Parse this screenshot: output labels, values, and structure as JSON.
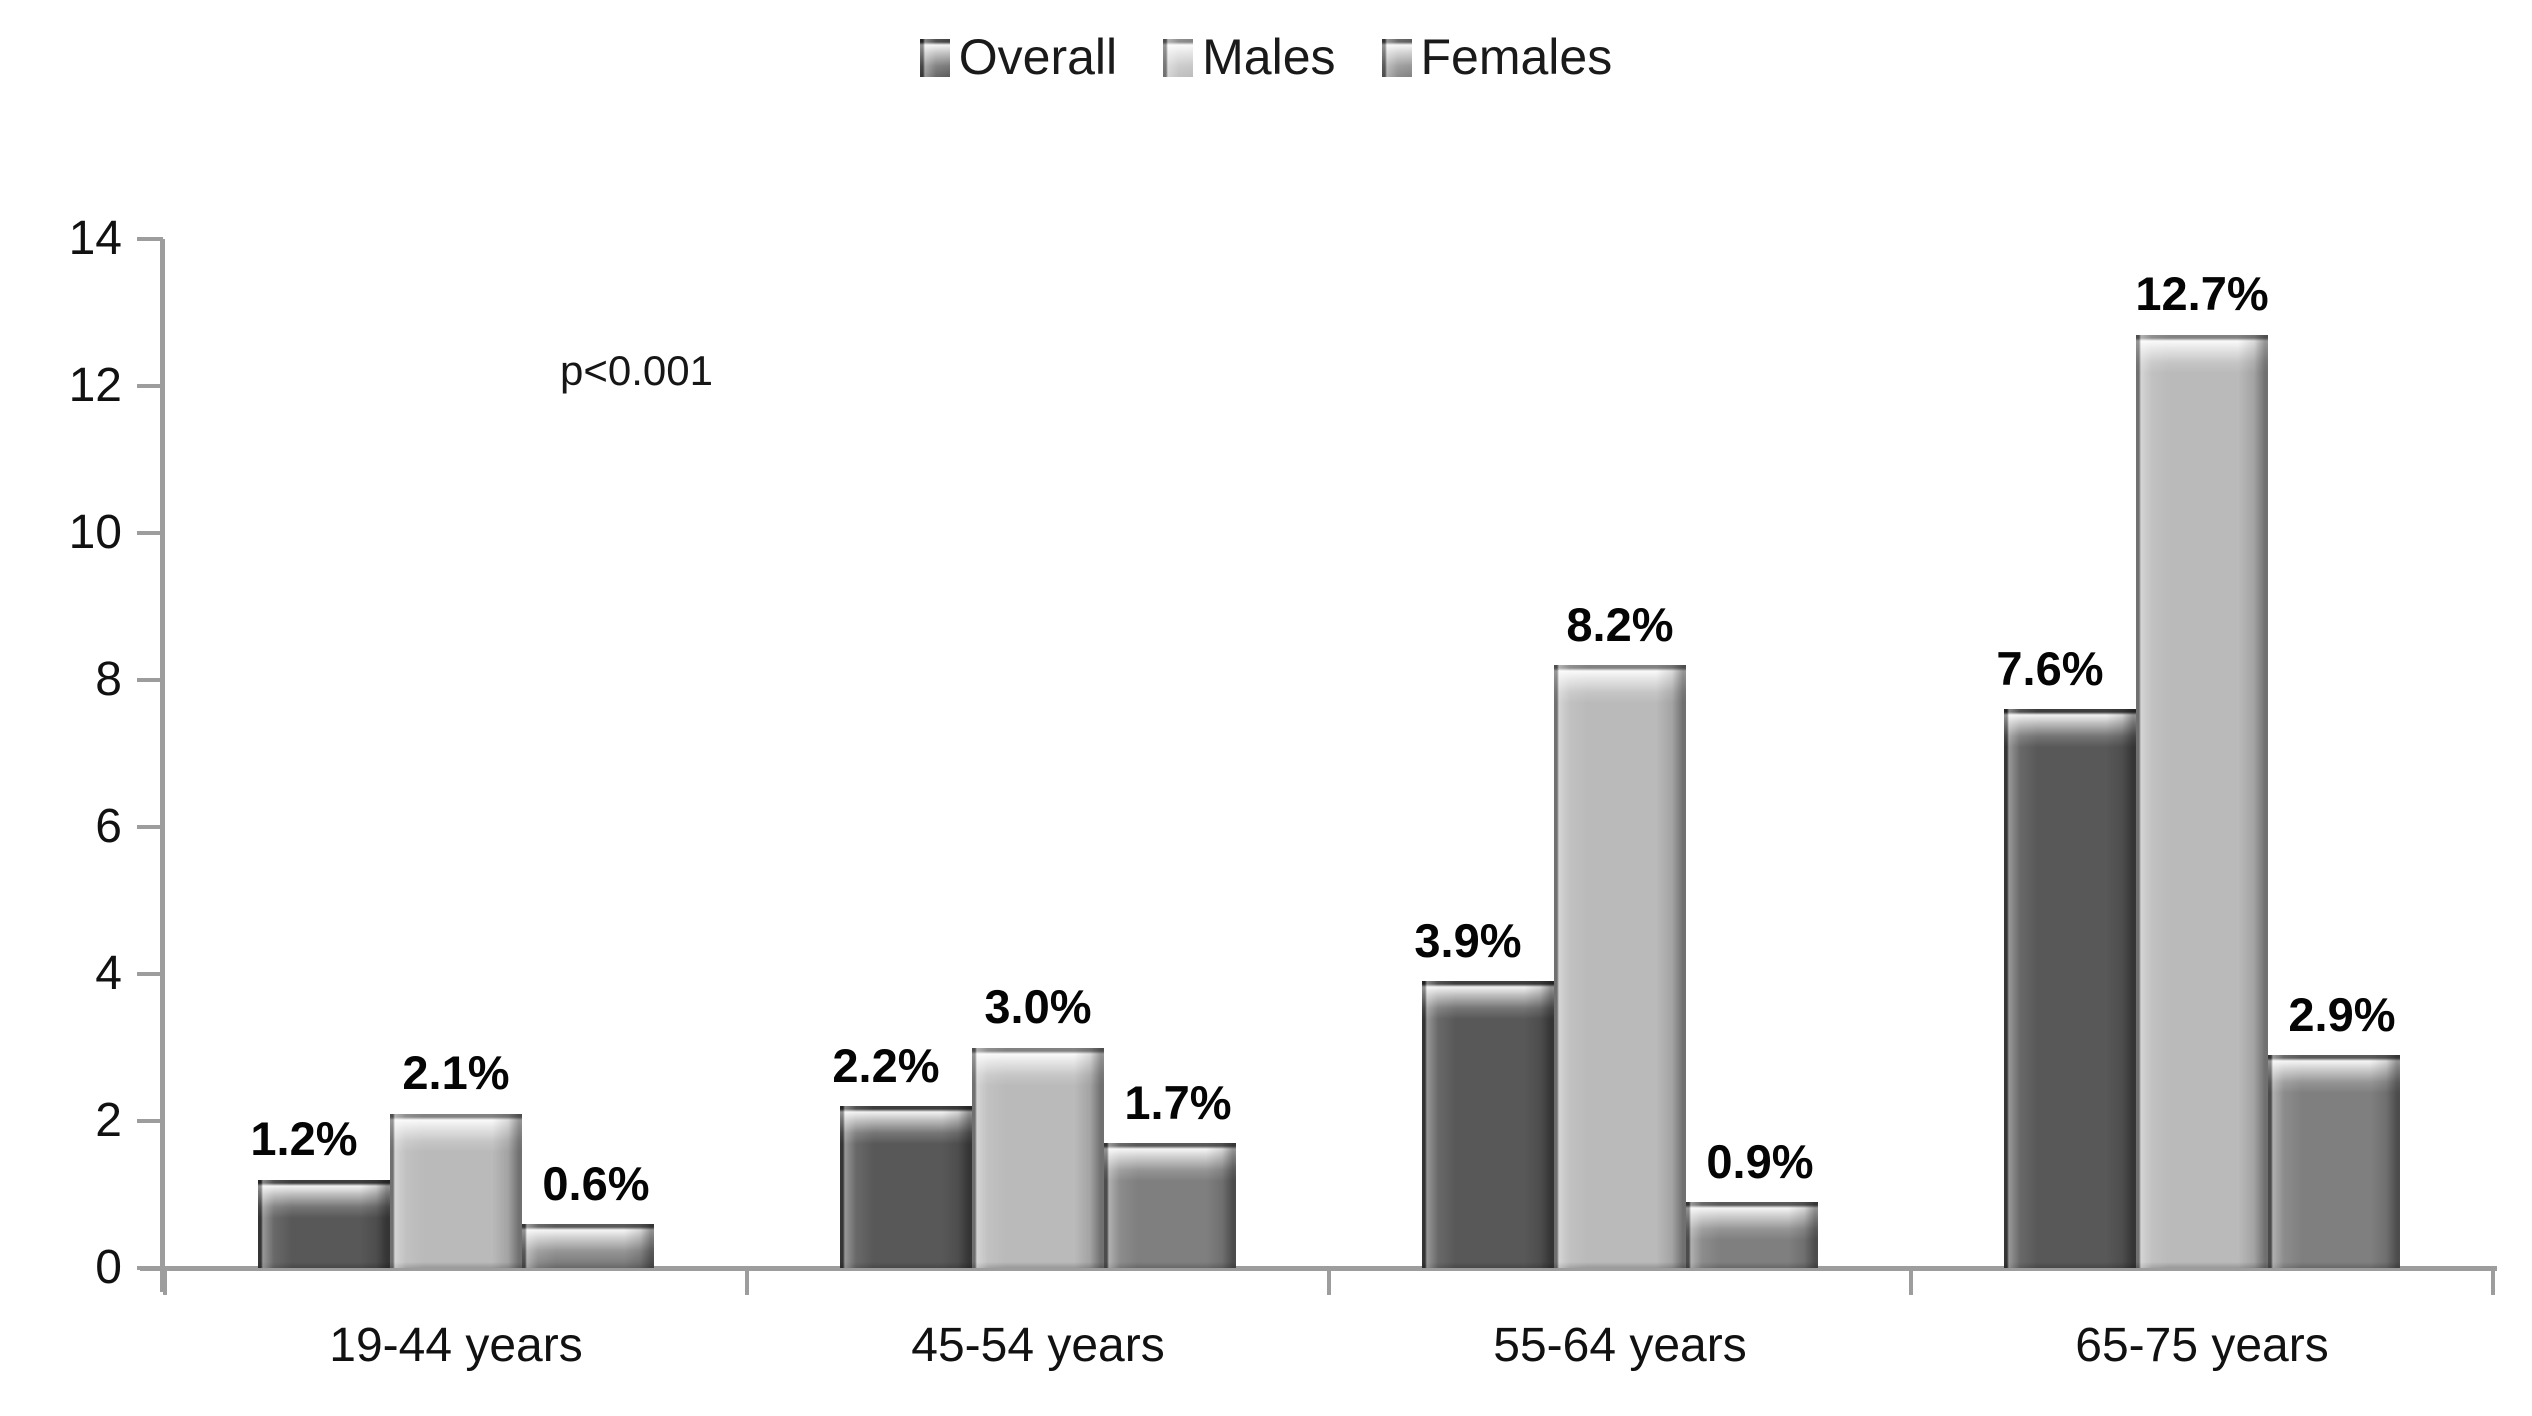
{
  "chart_data": {
    "type": "bar",
    "title": "",
    "categories": [
      "19-44 years",
      "45-54 years",
      "55-64 years",
      "65-75 years"
    ],
    "series": [
      {
        "name": "Overall",
        "color": "#585858",
        "values": [
          1.2,
          2.2,
          3.9,
          7.6
        ],
        "labels": [
          "1.2%",
          "2.2%",
          "3.9%",
          "7.6%"
        ]
      },
      {
        "name": "Males",
        "color": "#bababa",
        "values": [
          2.1,
          3.0,
          8.2,
          12.7
        ],
        "labels": [
          "2.1%",
          "3.0%",
          "8.2%",
          "12.7%"
        ]
      },
      {
        "name": "Females",
        "color": "#7f7f7f",
        "values": [
          0.6,
          1.7,
          0.9,
          2.9
        ],
        "labels": [
          "0.6%",
          "1.7%",
          "0.9%",
          "2.9%"
        ]
      }
    ],
    "xlabel": "",
    "ylabel": "",
    "ylim": [
      0,
      14
    ],
    "yticks": [
      0,
      2,
      4,
      6,
      8,
      10,
      12,
      14
    ],
    "grid": false,
    "legend_position": "top",
    "annotation": "p<0.001",
    "axis_color": "#9d9d9d",
    "text_color": "#111111",
    "label_color": "#050505",
    "background_color": "#ffffff"
  }
}
